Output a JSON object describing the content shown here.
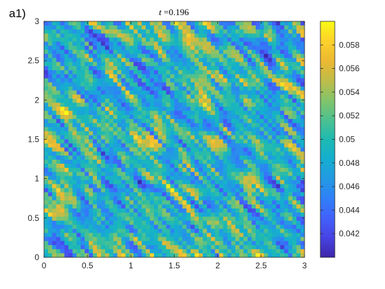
{
  "panel_label": "a1)",
  "chart_data": {
    "type": "heatmap",
    "title_var": "t",
    "title_eq": " =",
    "title_value": "0.196",
    "xlim": [
      0,
      3
    ],
    "ylim": [
      0,
      3
    ],
    "x_ticks": [
      "0",
      "0.5",
      "1",
      "1.5",
      "2",
      "2.5",
      "3"
    ],
    "y_ticks": [
      "0",
      "0.5",
      "1",
      "1.5",
      "2",
      "2.5",
      "3"
    ],
    "colorbar": {
      "range": [
        0.04,
        0.06
      ],
      "ticks": [
        "0.042",
        "0.044",
        "0.046",
        "0.048",
        "0.05",
        "0.052",
        "0.054",
        "0.056",
        "0.058"
      ],
      "tick_values": [
        0.042,
        0.044,
        0.046,
        0.048,
        0.05,
        0.052,
        0.054,
        0.056,
        0.058
      ],
      "colormap": [
        "#3e26a8",
        "#4743e3",
        "#4261fb",
        "#2f80f7",
        "#2399e3",
        "#14aed0",
        "#1ebab2",
        "#4dc18f",
        "#84c46a",
        "#bfbc48",
        "#ecb932",
        "#fcd12b",
        "#f9fb15"
      ]
    }
  }
}
